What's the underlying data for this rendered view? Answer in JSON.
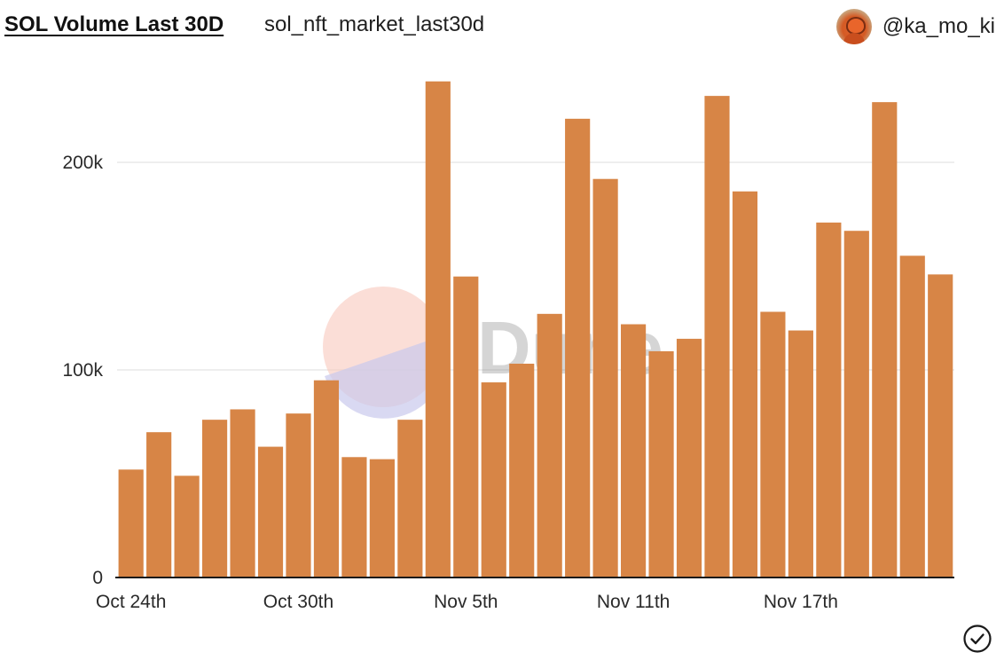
{
  "header": {
    "title": "SOL Volume Last 30D",
    "subtitle": "sol_nft_market_last30d",
    "author": "@ka_mo_ki"
  },
  "watermark": {
    "text": "Dune"
  },
  "colors": {
    "bar": "#d78546",
    "grid": "#e9e9e9",
    "axis": "#1a1a1a",
    "watermark_pink": "#f9c8bd",
    "watermark_blue": "#c9c9ec"
  },
  "icons": {
    "status": "check-circle-icon",
    "avatar": "avatar-image"
  },
  "chart_data": {
    "type": "bar",
    "title": "SOL Volume Last 30D",
    "xlabel": "",
    "ylabel": "",
    "ylim": [
      0,
      240000
    ],
    "grid": true,
    "legend": "none",
    "y_ticks": [
      0,
      100000,
      200000
    ],
    "y_tick_labels": [
      "0",
      "100k",
      "200k"
    ],
    "x_tick_labels": [
      "Oct 24th",
      "Oct 30th",
      "Nov 5th",
      "Nov 11th",
      "Nov 17th"
    ],
    "x_tick_index": [
      0,
      6,
      12,
      18,
      24
    ],
    "categories": [
      "Oct 24",
      "Oct 25",
      "Oct 26",
      "Oct 27",
      "Oct 28",
      "Oct 29",
      "Oct 30",
      "Oct 31",
      "Nov 1",
      "Nov 2",
      "Nov 3",
      "Nov 4",
      "Nov 5",
      "Nov 6",
      "Nov 7",
      "Nov 8",
      "Nov 9",
      "Nov 10",
      "Nov 11",
      "Nov 12",
      "Nov 13",
      "Nov 14",
      "Nov 15",
      "Nov 16",
      "Nov 17",
      "Nov 18",
      "Nov 19",
      "Nov 20",
      "Nov 21",
      "Nov 22"
    ],
    "values": [
      52000,
      70000,
      49000,
      76000,
      81000,
      63000,
      79000,
      95000,
      58000,
      57000,
      76000,
      239000,
      145000,
      94000,
      103000,
      127000,
      221000,
      192000,
      122000,
      109000,
      115000,
      232000,
      186000,
      128000,
      119000,
      171000,
      167000,
      229000,
      155000,
      146000
    ]
  }
}
